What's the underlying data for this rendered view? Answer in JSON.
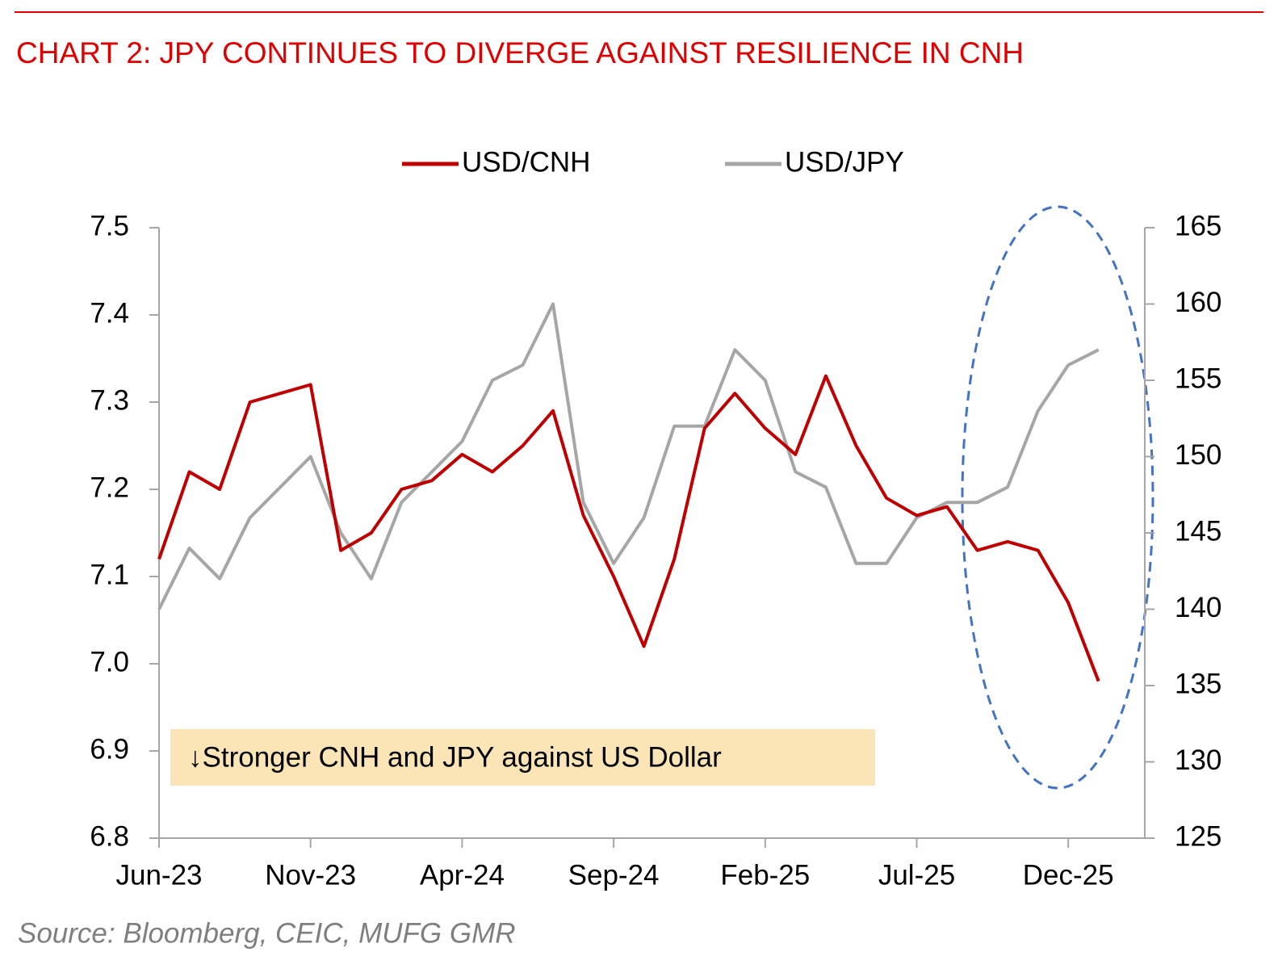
{
  "chart_data": {
    "type": "line",
    "title": "CHART 2: JPY CONTINUES TO DIVERGE AGAINST RESILIENCE IN CNH",
    "source": "Source: Bloomberg, CEIC, MUFG GMR",
    "annotation": "↓Stronger CNH and JPY against US Dollar",
    "categories": [
      "Jun-23",
      null,
      null,
      null,
      null,
      "Nov-23",
      null,
      null,
      null,
      null,
      "Apr-24",
      null,
      null,
      null,
      null,
      "Sep-24",
      null,
      null,
      null,
      null,
      "Feb-25",
      null,
      null,
      null,
      null,
      "Jul-25",
      null,
      null,
      null,
      null,
      "Dec-25",
      null
    ],
    "series": [
      {
        "name": "USD/CNH",
        "color": "#c00000",
        "axis": "y",
        "values": [
          7.12,
          7.22,
          7.2,
          7.3,
          7.31,
          7.32,
          7.13,
          7.15,
          7.2,
          7.21,
          7.24,
          7.22,
          7.25,
          7.29,
          7.17,
          7.1,
          7.02,
          7.12,
          7.27,
          7.31,
          7.27,
          7.24,
          7.33,
          7.25,
          7.19,
          7.17,
          7.18,
          7.13,
          7.14,
          7.13,
          7.07,
          6.98
        ]
      },
      {
        "name": "USD/JPY",
        "color": "#a6a6a6",
        "axis": "y2",
        "values": [
          140,
          144,
          142,
          146,
          148,
          150,
          145,
          142,
          147,
          149,
          151,
          155,
          156,
          160,
          147,
          143,
          146,
          152,
          152,
          157,
          155,
          149,
          148,
          143,
          143,
          146,
          147,
          147,
          148,
          153,
          156,
          157
        ]
      }
    ],
    "ylim": [
      6.8,
      7.5
    ],
    "yticks": [
      6.8,
      6.9,
      {
        "value": 7,
        "label": "7.0"
      },
      7.1,
      7.2,
      7.3,
      7.4,
      7.5
    ],
    "y2lim": [
      125,
      165
    ],
    "y2ticks": [
      125,
      130,
      135,
      140,
      145,
      150,
      155,
      160,
      165
    ],
    "legend": "top"
  }
}
